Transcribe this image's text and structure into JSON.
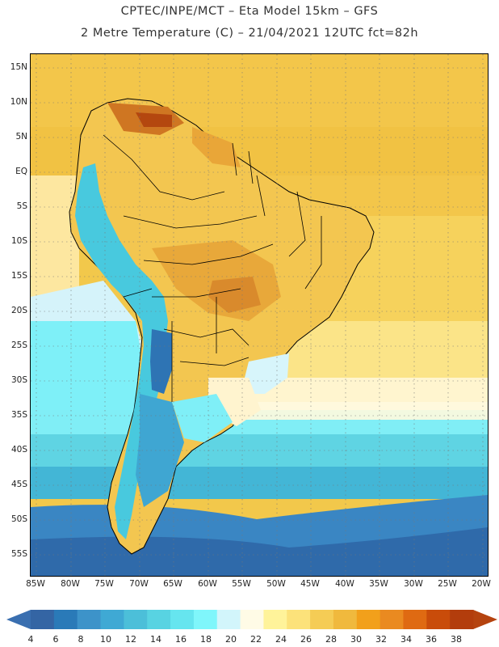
{
  "header": {
    "line1": "CPTEC/INPE/MCT –  Eta Model 15km – GFS",
    "line2": "2 Metre Temperature (C) – 21/04/2021 12UTC fct=82h"
  },
  "map": {
    "latitude_labels": [
      "15N",
      "10N",
      "5N",
      "EQ",
      "5S",
      "10S",
      "15S",
      "20S",
      "25S",
      "30S",
      "35S",
      "40S",
      "45S",
      "50S",
      "55S"
    ],
    "longitude_labels": [
      "85W",
      "80W",
      "75W",
      "70W",
      "65W",
      "60W",
      "55W",
      "50W",
      "45W",
      "40W",
      "35W",
      "30W",
      "25W",
      "20W"
    ],
    "extent": {
      "lon_min": -86,
      "lon_max": -19.5,
      "lat_min": -57.5,
      "lat_max": 17
    },
    "grid": "dotted",
    "coastline_color": "#000000"
  },
  "colorbar": {
    "labels": [
      "4",
      "6",
      "8",
      "10",
      "12",
      "14",
      "16",
      "18",
      "20",
      "22",
      "24",
      "26",
      "28",
      "30",
      "32",
      "34",
      "36",
      "38"
    ],
    "colors": [
      "#3465a4",
      "#2a7ab8",
      "#3d93c9",
      "#3fa9d4",
      "#4cbfd9",
      "#58d3e2",
      "#66e5ef",
      "#7ff6fb",
      "#d2f5fb",
      "#fffbe6",
      "#fff39a",
      "#fce27a",
      "#f5cc55",
      "#f0b93d",
      "#f2a01b",
      "#ea8a20",
      "#df6a12",
      "#c94c0a",
      "#b33d0c"
    ],
    "low_arrow_color": "#3a6fb0",
    "high_arrow_color": "#b5430f"
  }
}
